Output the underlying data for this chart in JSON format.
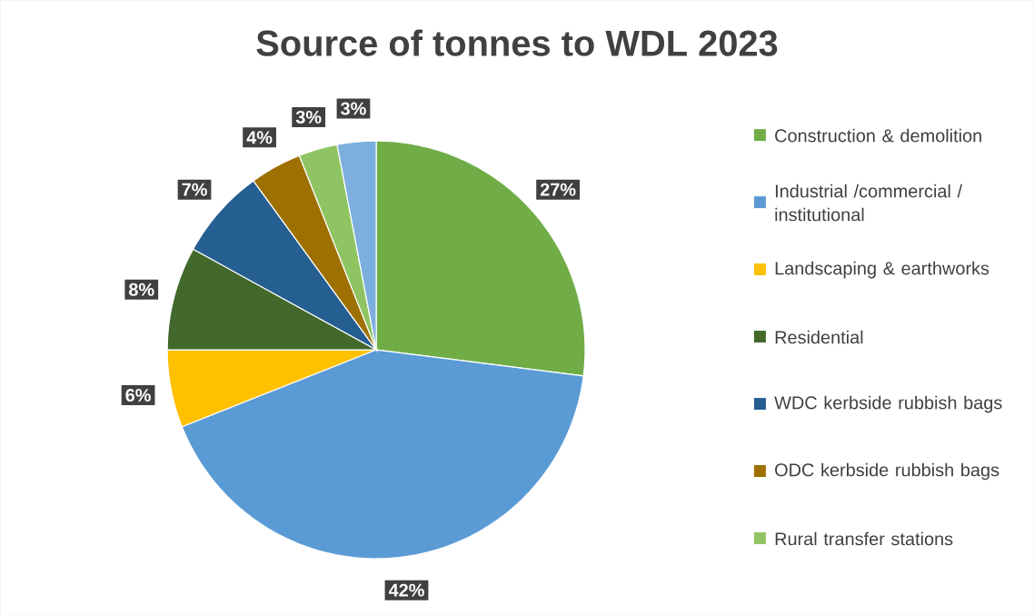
{
  "chart_data": {
    "type": "pie",
    "title": "Source of tonnes to WDL 2023",
    "categories": [
      "Construction & demolition",
      "Industrial /commercial / institutional",
      "Landscaping & earthworks",
      "Residential",
      "WDC kerbside rubbish bags",
      "ODC kerbside rubbish bags",
      "Rural transfer stations",
      null
    ],
    "values": [
      27,
      42,
      6,
      8,
      7,
      4,
      3,
      3
    ],
    "colors": [
      "#70ad47",
      "#5b9bd5",
      "#ffc000",
      "#43682b",
      "#255e91",
      "#9e7002",
      "#8fc462",
      "#7cafdd"
    ],
    "value_labels": [
      "27%",
      "42%",
      "6%",
      "8%",
      "7%",
      "4%",
      "3%",
      "3%"
    ],
    "legend": "right"
  }
}
